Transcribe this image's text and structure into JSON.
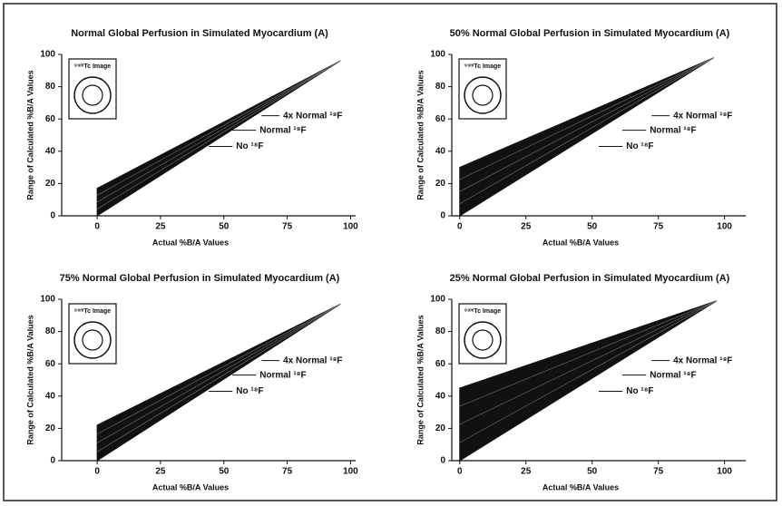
{
  "chart_data": [
    {
      "type": "area",
      "title": "Normal Global Perfusion in Simulated Myocardium (A)",
      "xlabel": "Actual  %B/A Values",
      "ylabel": "Range of Calculated %B/A Values",
      "inset_label": "⁹⁹ᵐTc Image",
      "color": "#111111",
      "x": [
        0,
        96
      ],
      "upper": [
        17,
        96
      ],
      "lower": [
        0,
        96
      ],
      "xlim": [
        -14,
        102
      ],
      "ylim": [
        0,
        100
      ],
      "xticks": [
        0,
        25,
        50,
        75,
        100
      ],
      "yticks": [
        0,
        20,
        40,
        60,
        80,
        100
      ],
      "annotations": [
        "4x Normal ¹⁸F",
        "Normal ¹⁸F",
        "No ¹⁸F"
      ]
    },
    {
      "type": "area",
      "title": "50% Normal Global Perfusion in Simulated Myocardium (A)",
      "xlabel": "Actual %B/A Values",
      "ylabel": "Range of Calculated %B/A Values",
      "inset_label": "⁹⁹ᵐTc Image",
      "color": "#111111",
      "x": [
        0,
        96
      ],
      "upper": [
        30,
        98
      ],
      "lower": [
        0,
        98
      ],
      "xlim": [
        -3,
        108
      ],
      "ylim": [
        0,
        100
      ],
      "xticks": [
        0,
        25,
        50,
        75,
        100
      ],
      "yticks": [
        0,
        20,
        40,
        60,
        80,
        100
      ],
      "annotations": [
        "4x Normal ¹⁸F",
        "Normal ¹⁸F",
        "No ¹⁸F"
      ]
    },
    {
      "type": "area",
      "title": "75% Normal Global Perfusion in Simulated Myocardium (A)",
      "xlabel": "Actual %B/A Values",
      "ylabel": "Range of Calculated  %B/A Values",
      "inset_label": "⁹⁹ᵐTc Image",
      "color": "#111111",
      "x": [
        0,
        96
      ],
      "upper": [
        22,
        97
      ],
      "lower": [
        0,
        97
      ],
      "xlim": [
        -14,
        102
      ],
      "ylim": [
        0,
        100
      ],
      "xticks": [
        0,
        25,
        50,
        75,
        100
      ],
      "yticks": [
        0,
        20,
        40,
        60,
        80,
        100
      ],
      "annotations": [
        "4x Normal ¹⁸F",
        "Normal ¹⁸F",
        "No ¹⁸F"
      ]
    },
    {
      "type": "area",
      "title": "25% Normal Global Perfusion in Simulated Myocardium (A)",
      "xlabel": "Actual %B/A Values",
      "ylabel": "Range of Calculated %B/A Values",
      "inset_label": "⁹⁹ᵐTc Image",
      "color": "#111111",
      "x": [
        0,
        97
      ],
      "upper": [
        45,
        99
      ],
      "lower": [
        0,
        99
      ],
      "xlim": [
        -3,
        108
      ],
      "ylim": [
        0,
        100
      ],
      "xticks": [
        0,
        25,
        50,
        75,
        100
      ],
      "yticks": [
        0,
        20,
        40,
        60,
        80,
        100
      ],
      "annotations": [
        "4x Normal ¹⁸F",
        "Normal ¹⁸F",
        "No ¹⁸F"
      ]
    }
  ]
}
